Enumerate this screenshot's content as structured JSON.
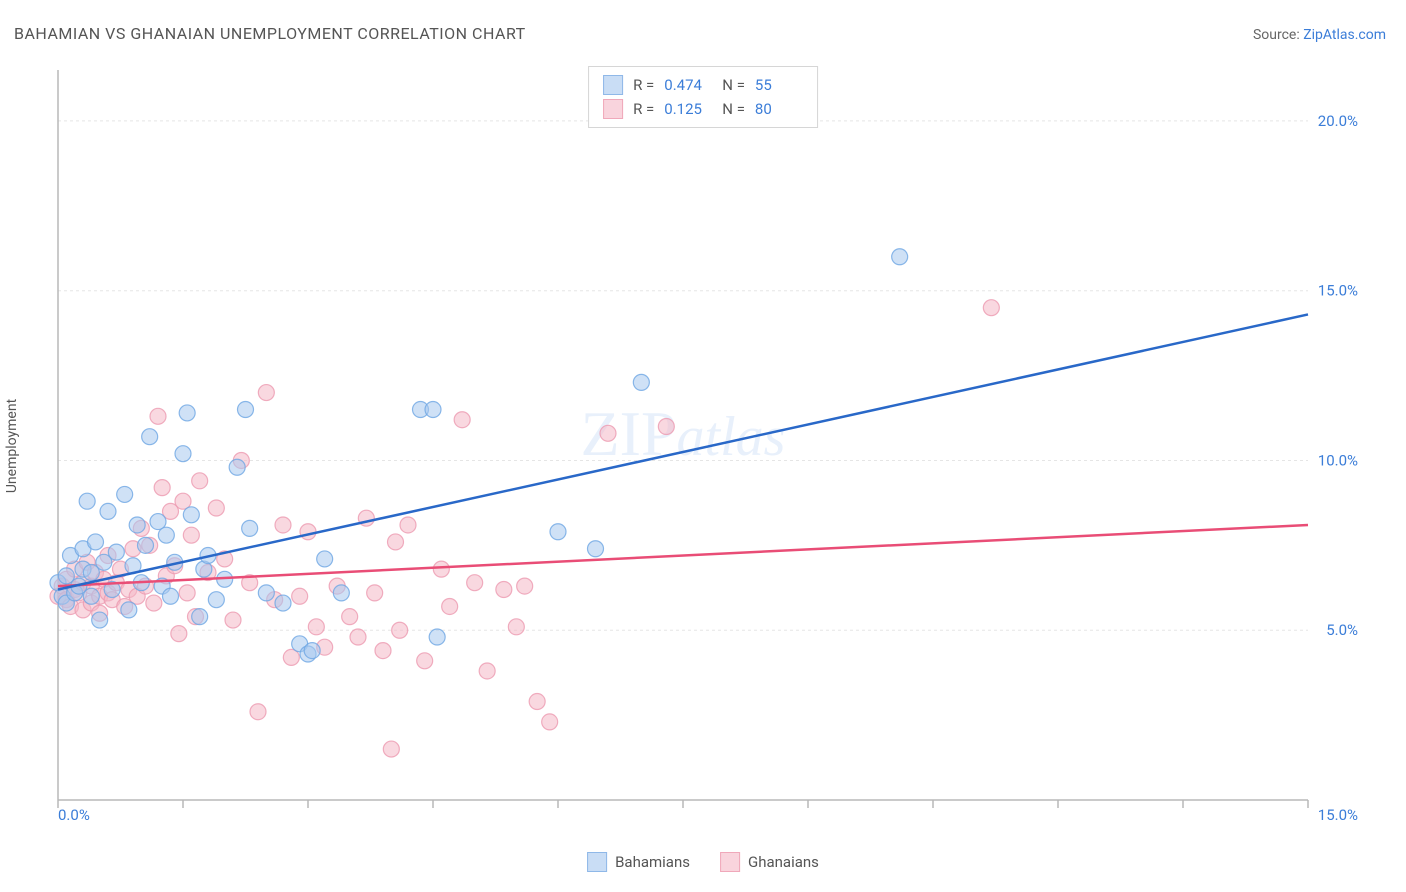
{
  "header": {
    "title": "BAHAMIAN VS GHANAIAN UNEMPLOYMENT CORRELATION CHART",
    "source_prefix": "Source: ",
    "source_link": "ZipAtlas.com"
  },
  "chart": {
    "type": "scatter",
    "y_label": "Unemployment",
    "xlim": [
      0,
      15
    ],
    "ylim": [
      0,
      21.5
    ],
    "x_ticks": [
      0,
      1.5,
      3,
      4.5,
      6,
      7.5,
      9,
      10.5,
      12,
      13.5,
      15
    ],
    "x_tick_labels": {
      "0": "0.0%",
      "15": "15.0%"
    },
    "y_gridlines": [
      5,
      10,
      15,
      20
    ],
    "y_tick_labels": {
      "5": "5.0%",
      "10": "10.0%",
      "15": "15.0%",
      "20": "20.0%"
    },
    "grid_color": "#e5e5e5",
    "axis_color": "#b8b8b8",
    "tick_label_color": "#3b7dd8",
    "background_color": "#ffffff",
    "marker_radius": 8,
    "marker_opacity": 0.55,
    "trendline_width": 2.5,
    "watermark": "ZIPatlas",
    "series": {
      "bahamians": {
        "label": "Bahamians",
        "color_fill": "#a8c8ef",
        "color_stroke": "#6ea6e4",
        "swatch_fill": "#c9ddf5",
        "swatch_border": "#8fb8e8",
        "r_value": "0.474",
        "n_value": "55",
        "trendline": {
          "x1": 0,
          "y1": 6.2,
          "x2": 15,
          "y2": 14.3,
          "color": "#2968c8"
        },
        "points": [
          [
            0,
            6.4
          ],
          [
            0.05,
            6.0
          ],
          [
            0.1,
            5.8
          ],
          [
            0.1,
            6.6
          ],
          [
            0.15,
            7.2
          ],
          [
            0.2,
            6.1
          ],
          [
            0.25,
            6.3
          ],
          [
            0.3,
            7.4
          ],
          [
            0.3,
            6.8
          ],
          [
            0.35,
            8.8
          ],
          [
            0.4,
            6.0
          ],
          [
            0.4,
            6.7
          ],
          [
            0.45,
            7.6
          ],
          [
            0.5,
            5.3
          ],
          [
            0.55,
            7.0
          ],
          [
            0.6,
            8.5
          ],
          [
            0.65,
            6.2
          ],
          [
            0.7,
            7.3
          ],
          [
            0.8,
            9.0
          ],
          [
            0.85,
            5.6
          ],
          [
            0.9,
            6.9
          ],
          [
            0.95,
            8.1
          ],
          [
            1.0,
            6.4
          ],
          [
            1.05,
            7.5
          ],
          [
            1.1,
            10.7
          ],
          [
            1.2,
            8.2
          ],
          [
            1.25,
            6.3
          ],
          [
            1.3,
            7.8
          ],
          [
            1.35,
            6.0
          ],
          [
            1.4,
            7.0
          ],
          [
            1.5,
            10.2
          ],
          [
            1.55,
            11.4
          ],
          [
            1.6,
            8.4
          ],
          [
            1.7,
            5.4
          ],
          [
            1.75,
            6.8
          ],
          [
            1.8,
            7.2
          ],
          [
            1.9,
            5.9
          ],
          [
            2.0,
            6.5
          ],
          [
            2.15,
            9.8
          ],
          [
            2.25,
            11.5
          ],
          [
            2.3,
            8.0
          ],
          [
            2.5,
            6.1
          ],
          [
            2.7,
            5.8
          ],
          [
            2.9,
            4.6
          ],
          [
            3.0,
            4.3
          ],
          [
            3.05,
            4.4
          ],
          [
            3.2,
            7.1
          ],
          [
            3.4,
            6.1
          ],
          [
            4.35,
            11.5
          ],
          [
            4.5,
            11.5
          ],
          [
            4.55,
            4.8
          ],
          [
            6.0,
            7.9
          ],
          [
            6.45,
            7.4
          ],
          [
            7.0,
            12.3
          ],
          [
            10.1,
            16.0
          ]
        ]
      },
      "ghanaians": {
        "label": "Ghanaians",
        "color_fill": "#f4b8c6",
        "color_stroke": "#ec9ab0",
        "swatch_fill": "#f9d4dd",
        "swatch_border": "#f0a8ba",
        "r_value": "0.125",
        "n_value": "80",
        "trendline": {
          "x1": 0,
          "y1": 6.3,
          "x2": 15,
          "y2": 8.1,
          "color": "#e94d76"
        },
        "points": [
          [
            0,
            6.0
          ],
          [
            0.05,
            6.3
          ],
          [
            0.1,
            5.9
          ],
          [
            0.1,
            6.5
          ],
          [
            0.15,
            5.7
          ],
          [
            0.2,
            6.2
          ],
          [
            0.2,
            6.8
          ],
          [
            0.25,
            6.1
          ],
          [
            0.3,
            5.6
          ],
          [
            0.3,
            6.4
          ],
          [
            0.35,
            7.0
          ],
          [
            0.4,
            5.8
          ],
          [
            0.4,
            6.3
          ],
          [
            0.45,
            6.7
          ],
          [
            0.5,
            6.0
          ],
          [
            0.5,
            5.5
          ],
          [
            0.55,
            6.5
          ],
          [
            0.6,
            7.2
          ],
          [
            0.6,
            6.1
          ],
          [
            0.65,
            5.9
          ],
          [
            0.7,
            6.4
          ],
          [
            0.75,
            6.8
          ],
          [
            0.8,
            5.7
          ],
          [
            0.85,
            6.2
          ],
          [
            0.9,
            7.4
          ],
          [
            0.95,
            6.0
          ],
          [
            1.0,
            8.0
          ],
          [
            1.05,
            6.3
          ],
          [
            1.1,
            7.5
          ],
          [
            1.15,
            5.8
          ],
          [
            1.2,
            11.3
          ],
          [
            1.25,
            9.2
          ],
          [
            1.3,
            6.6
          ],
          [
            1.35,
            8.5
          ],
          [
            1.4,
            6.9
          ],
          [
            1.45,
            4.9
          ],
          [
            1.5,
            8.8
          ],
          [
            1.55,
            6.1
          ],
          [
            1.6,
            7.8
          ],
          [
            1.65,
            5.4
          ],
          [
            1.7,
            9.4
          ],
          [
            1.8,
            6.7
          ],
          [
            1.9,
            8.6
          ],
          [
            2.0,
            7.1
          ],
          [
            2.1,
            5.3
          ],
          [
            2.2,
            10.0
          ],
          [
            2.3,
            6.4
          ],
          [
            2.4,
            2.6
          ],
          [
            2.5,
            12.0
          ],
          [
            2.6,
            5.9
          ],
          [
            2.7,
            8.1
          ],
          [
            2.8,
            4.2
          ],
          [
            2.9,
            6.0
          ],
          [
            3.0,
            7.9
          ],
          [
            3.1,
            5.1
          ],
          [
            3.2,
            4.5
          ],
          [
            3.35,
            6.3
          ],
          [
            3.5,
            5.4
          ],
          [
            3.6,
            4.8
          ],
          [
            3.7,
            8.3
          ],
          [
            3.8,
            6.1
          ],
          [
            3.9,
            4.4
          ],
          [
            4.0,
            1.5
          ],
          [
            4.05,
            7.6
          ],
          [
            4.1,
            5.0
          ],
          [
            4.2,
            8.1
          ],
          [
            4.4,
            4.1
          ],
          [
            4.6,
            6.8
          ],
          [
            4.7,
            5.7
          ],
          [
            4.85,
            11.2
          ],
          [
            5.0,
            6.4
          ],
          [
            5.15,
            3.8
          ],
          [
            5.35,
            6.2
          ],
          [
            5.5,
            5.1
          ],
          [
            5.6,
            6.3
          ],
          [
            5.75,
            2.9
          ],
          [
            5.9,
            2.3
          ],
          [
            6.6,
            10.8
          ],
          [
            7.3,
            11.0
          ],
          [
            11.2,
            14.5
          ]
        ]
      }
    },
    "legend_box": {
      "r_label": "R =",
      "n_label": "N ="
    }
  }
}
